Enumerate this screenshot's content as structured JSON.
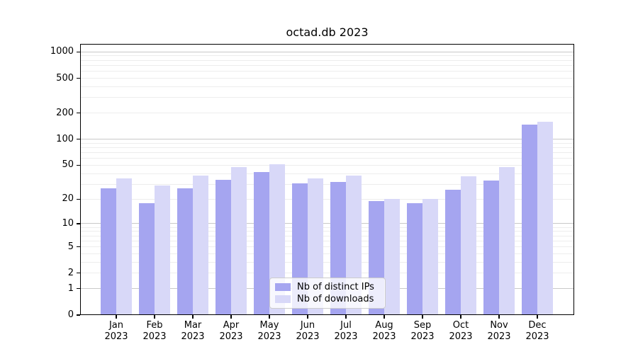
{
  "chart_data": {
    "type": "bar",
    "title": "octad.db 2023",
    "categories": [
      {
        "month": "Jan",
        "year": "2023"
      },
      {
        "month": "Feb",
        "year": "2023"
      },
      {
        "month": "Mar",
        "year": "2023"
      },
      {
        "month": "Apr",
        "year": "2023"
      },
      {
        "month": "May",
        "year": "2023"
      },
      {
        "month": "Jun",
        "year": "2023"
      },
      {
        "month": "Jul",
        "year": "2023"
      },
      {
        "month": "Aug",
        "year": "2023"
      },
      {
        "month": "Sep",
        "year": "2023"
      },
      {
        "month": "Oct",
        "year": "2023"
      },
      {
        "month": "Nov",
        "year": "2023"
      },
      {
        "month": "Dec",
        "year": "2023"
      }
    ],
    "series": [
      {
        "name": "Nb of distinct IPs",
        "color": "#a5a5f0",
        "values": [
          27,
          18,
          27,
          34,
          42,
          31,
          32,
          19,
          18,
          26,
          33,
          147
        ]
      },
      {
        "name": "Nb of downloads",
        "color": "#d8d8f8",
        "values": [
          35,
          29,
          38,
          48,
          51,
          35,
          38,
          20,
          20,
          37,
          48,
          160
        ]
      }
    ],
    "yscale": "log10(1+v)",
    "yticks": [
      0,
      1,
      2,
      5,
      10,
      20,
      50,
      100,
      200,
      500,
      1000
    ],
    "ylim": [
      0,
      1234
    ],
    "grid": true,
    "grid_major_values": [
      1,
      10,
      100,
      1000
    ],
    "legend_position": "lower center"
  },
  "colors": {
    "major_grid": "#c9c9c9",
    "minor_grid": "#ededed",
    "axis": "#000000",
    "legend_border": "#cccccc",
    "legend_background": "rgba(255,255,255,0.8)"
  }
}
